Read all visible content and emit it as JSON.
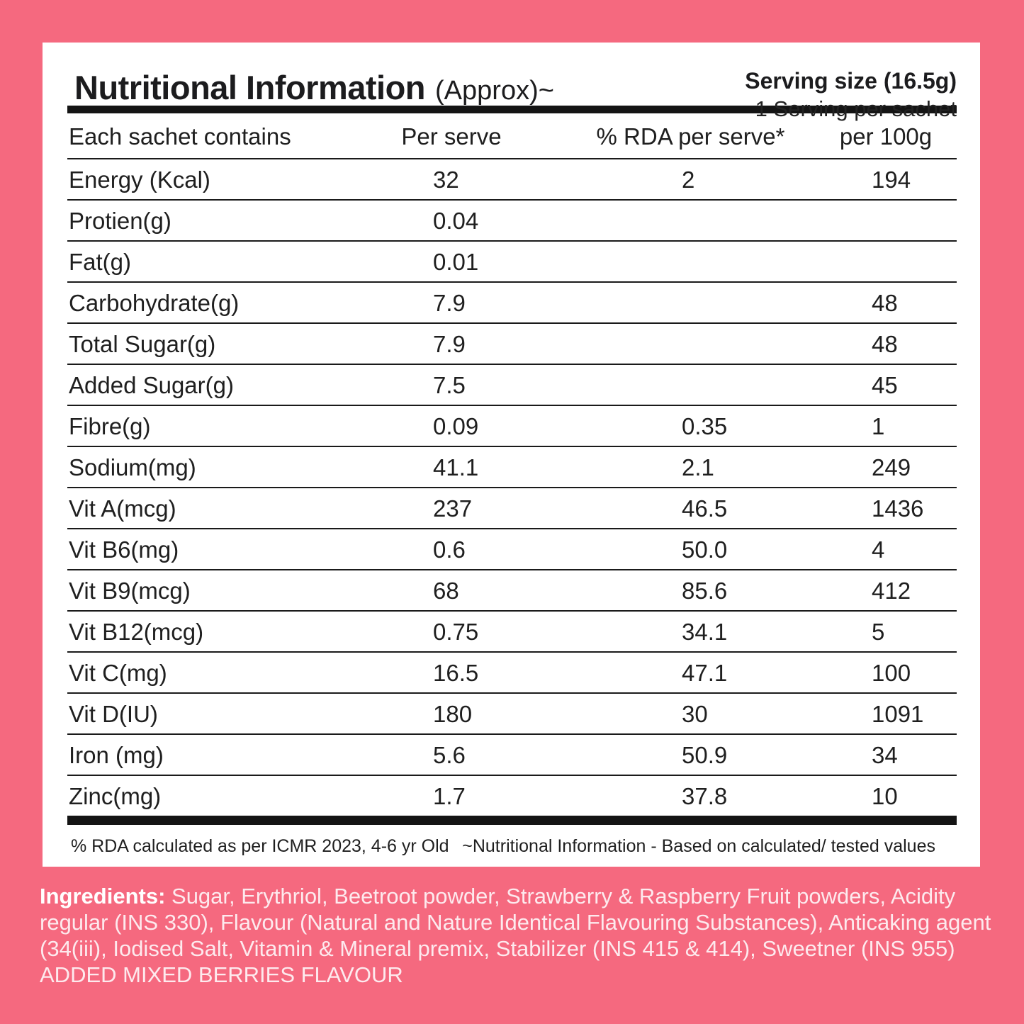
{
  "colors": {
    "background_pink": "#f5697f",
    "card_white": "#ffffff",
    "text_dark": "#1d1d1d",
    "ingredients_text": "#fdeaee"
  },
  "header": {
    "title": "Nutritional Information",
    "title_suffix": "(Approx)~",
    "serving_size": "Serving size (16.5g)",
    "serving_note": "1 Serving per sachet"
  },
  "table": {
    "columns": [
      "Each sachet contains",
      "Per serve",
      "% RDA per serve*",
      "per 100g"
    ],
    "rows": [
      {
        "label": "Energy (Kcal)",
        "per_serve": "32",
        "rda_per_serve": "2",
        "per_100g": "194"
      },
      {
        "label": "Protien(g)",
        "per_serve": "0.04",
        "rda_per_serve": "",
        "per_100g": ""
      },
      {
        "label": "Fat(g)",
        "per_serve": "0.01",
        "rda_per_serve": "",
        "per_100g": ""
      },
      {
        "label": "Carbohydrate(g)",
        "per_serve": "7.9",
        "rda_per_serve": "",
        "per_100g": "48"
      },
      {
        "label": "Total Sugar(g)",
        "per_serve": "7.9",
        "rda_per_serve": "",
        "per_100g": "48"
      },
      {
        "label": "Added Sugar(g)",
        "per_serve": "7.5",
        "rda_per_serve": "",
        "per_100g": "45"
      },
      {
        "label": "Fibre(g)",
        "per_serve": "0.09",
        "rda_per_serve": "0.35",
        "per_100g": "1"
      },
      {
        "label": "Sodium(mg)",
        "per_serve": "41.1",
        "rda_per_serve": "2.1",
        "per_100g": "249"
      },
      {
        "label": "Vit A(mcg)",
        "per_serve": "237",
        "rda_per_serve": "46.5",
        "per_100g": "1436"
      },
      {
        "label": "Vit B6(mg)",
        "per_serve": "0.6",
        "rda_per_serve": "50.0",
        "per_100g": "4"
      },
      {
        "label": "Vit B9(mcg)",
        "per_serve": "68",
        "rda_per_serve": "85.6",
        "per_100g": "412"
      },
      {
        "label": "Vit B12(mcg)",
        "per_serve": "0.75",
        "rda_per_serve": "34.1",
        "per_100g": "5"
      },
      {
        "label": "Vit C(mg)",
        "per_serve": "16.5",
        "rda_per_serve": "47.1",
        "per_100g": "100"
      },
      {
        "label": "Vit D(IU)",
        "per_serve": "180",
        "rda_per_serve": "30",
        "per_100g": "1091"
      },
      {
        "label": "Iron (mg)",
        "per_serve": "5.6",
        "rda_per_serve": "50.9",
        "per_100g": "34"
      },
      {
        "label": "Zinc(mg)",
        "per_serve": "1.7",
        "rda_per_serve": "37.8",
        "per_100g": "10"
      }
    ]
  },
  "footnotes": {
    "left": "% RDA calculated as per ICMR 2023, 4-6 yr Old",
    "right": "~Nutritional Information - Based on calculated/ tested values"
  },
  "ingredients": {
    "label": "Ingredients:",
    "text": " Sugar, Erythriol, Beetroot powder, Strawberry & Raspberry Fruit powders, Acidity regular (INS 330), Flavour (Natural and Nature Identical Flavouring Substances), Anticaking agent (34(iii), Iodised Salt, Vitamin & Mineral premix, Stabilizer (INS 415 & 414), Sweetner (INS 955) ADDED MIXED BERRIES FLAVOUR"
  }
}
